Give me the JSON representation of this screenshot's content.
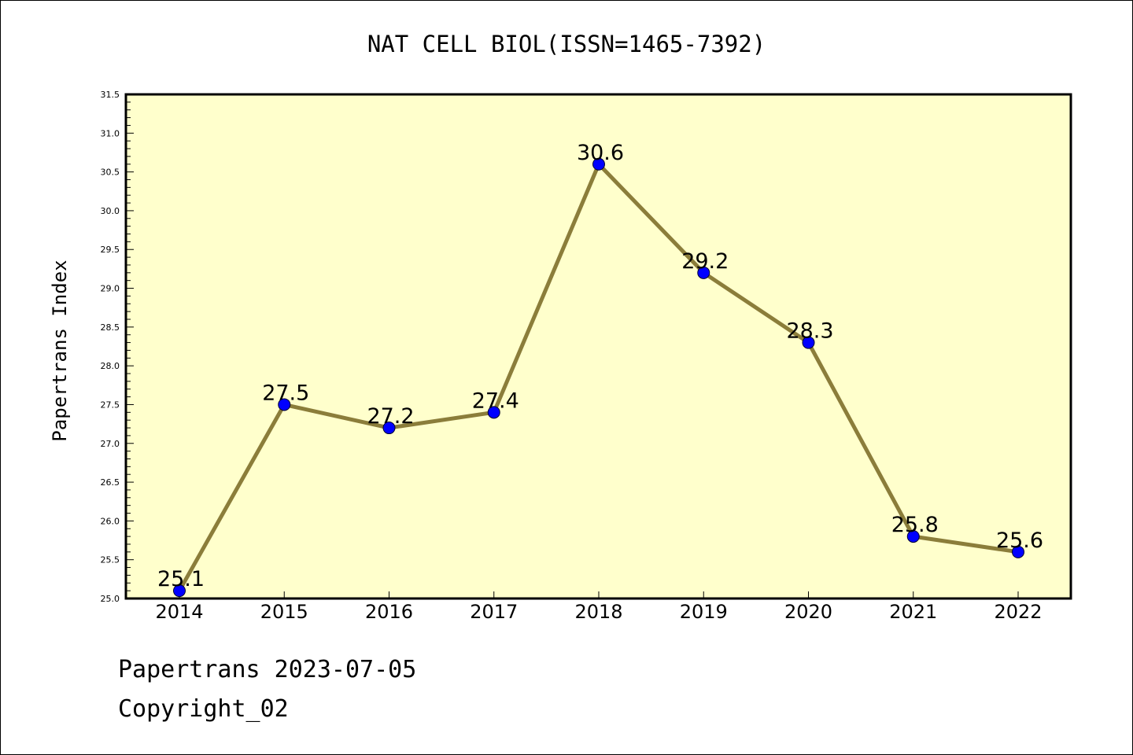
{
  "chart_data": {
    "type": "line",
    "title": "NAT CELL BIOL(ISSN=1465-7392)",
    "xlabel": "",
    "ylabel": "Papertrans Index",
    "categories": [
      "2014",
      "2015",
      "2016",
      "2017",
      "2018",
      "2019",
      "2020",
      "2021",
      "2022"
    ],
    "values": [
      25.1,
      27.5,
      27.2,
      27.4,
      30.6,
      29.2,
      28.3,
      25.8,
      25.6
    ],
    "data_labels": [
      "25.1",
      "27.5",
      "27.2",
      "27.4",
      "30.6",
      "29.2",
      "28.3",
      "25.8",
      "25.6"
    ],
    "ylim": [
      25.0,
      31.5
    ],
    "yticks": [
      "25.0",
      "25.5",
      "26.0",
      "26.5",
      "27.0",
      "27.5",
      "28.0",
      "28.5",
      "29.0",
      "29.5",
      "30.0",
      "30.5",
      "31.0",
      "31.5"
    ],
    "grid": false,
    "legend": "none",
    "colors": {
      "plot_background": "#ffffcc",
      "line": "#8b7d3a",
      "marker": "#0000ff"
    }
  },
  "footer": {
    "date_line": "Papertrans 2023-07-05",
    "copyright_line": "Copyright_02"
  }
}
